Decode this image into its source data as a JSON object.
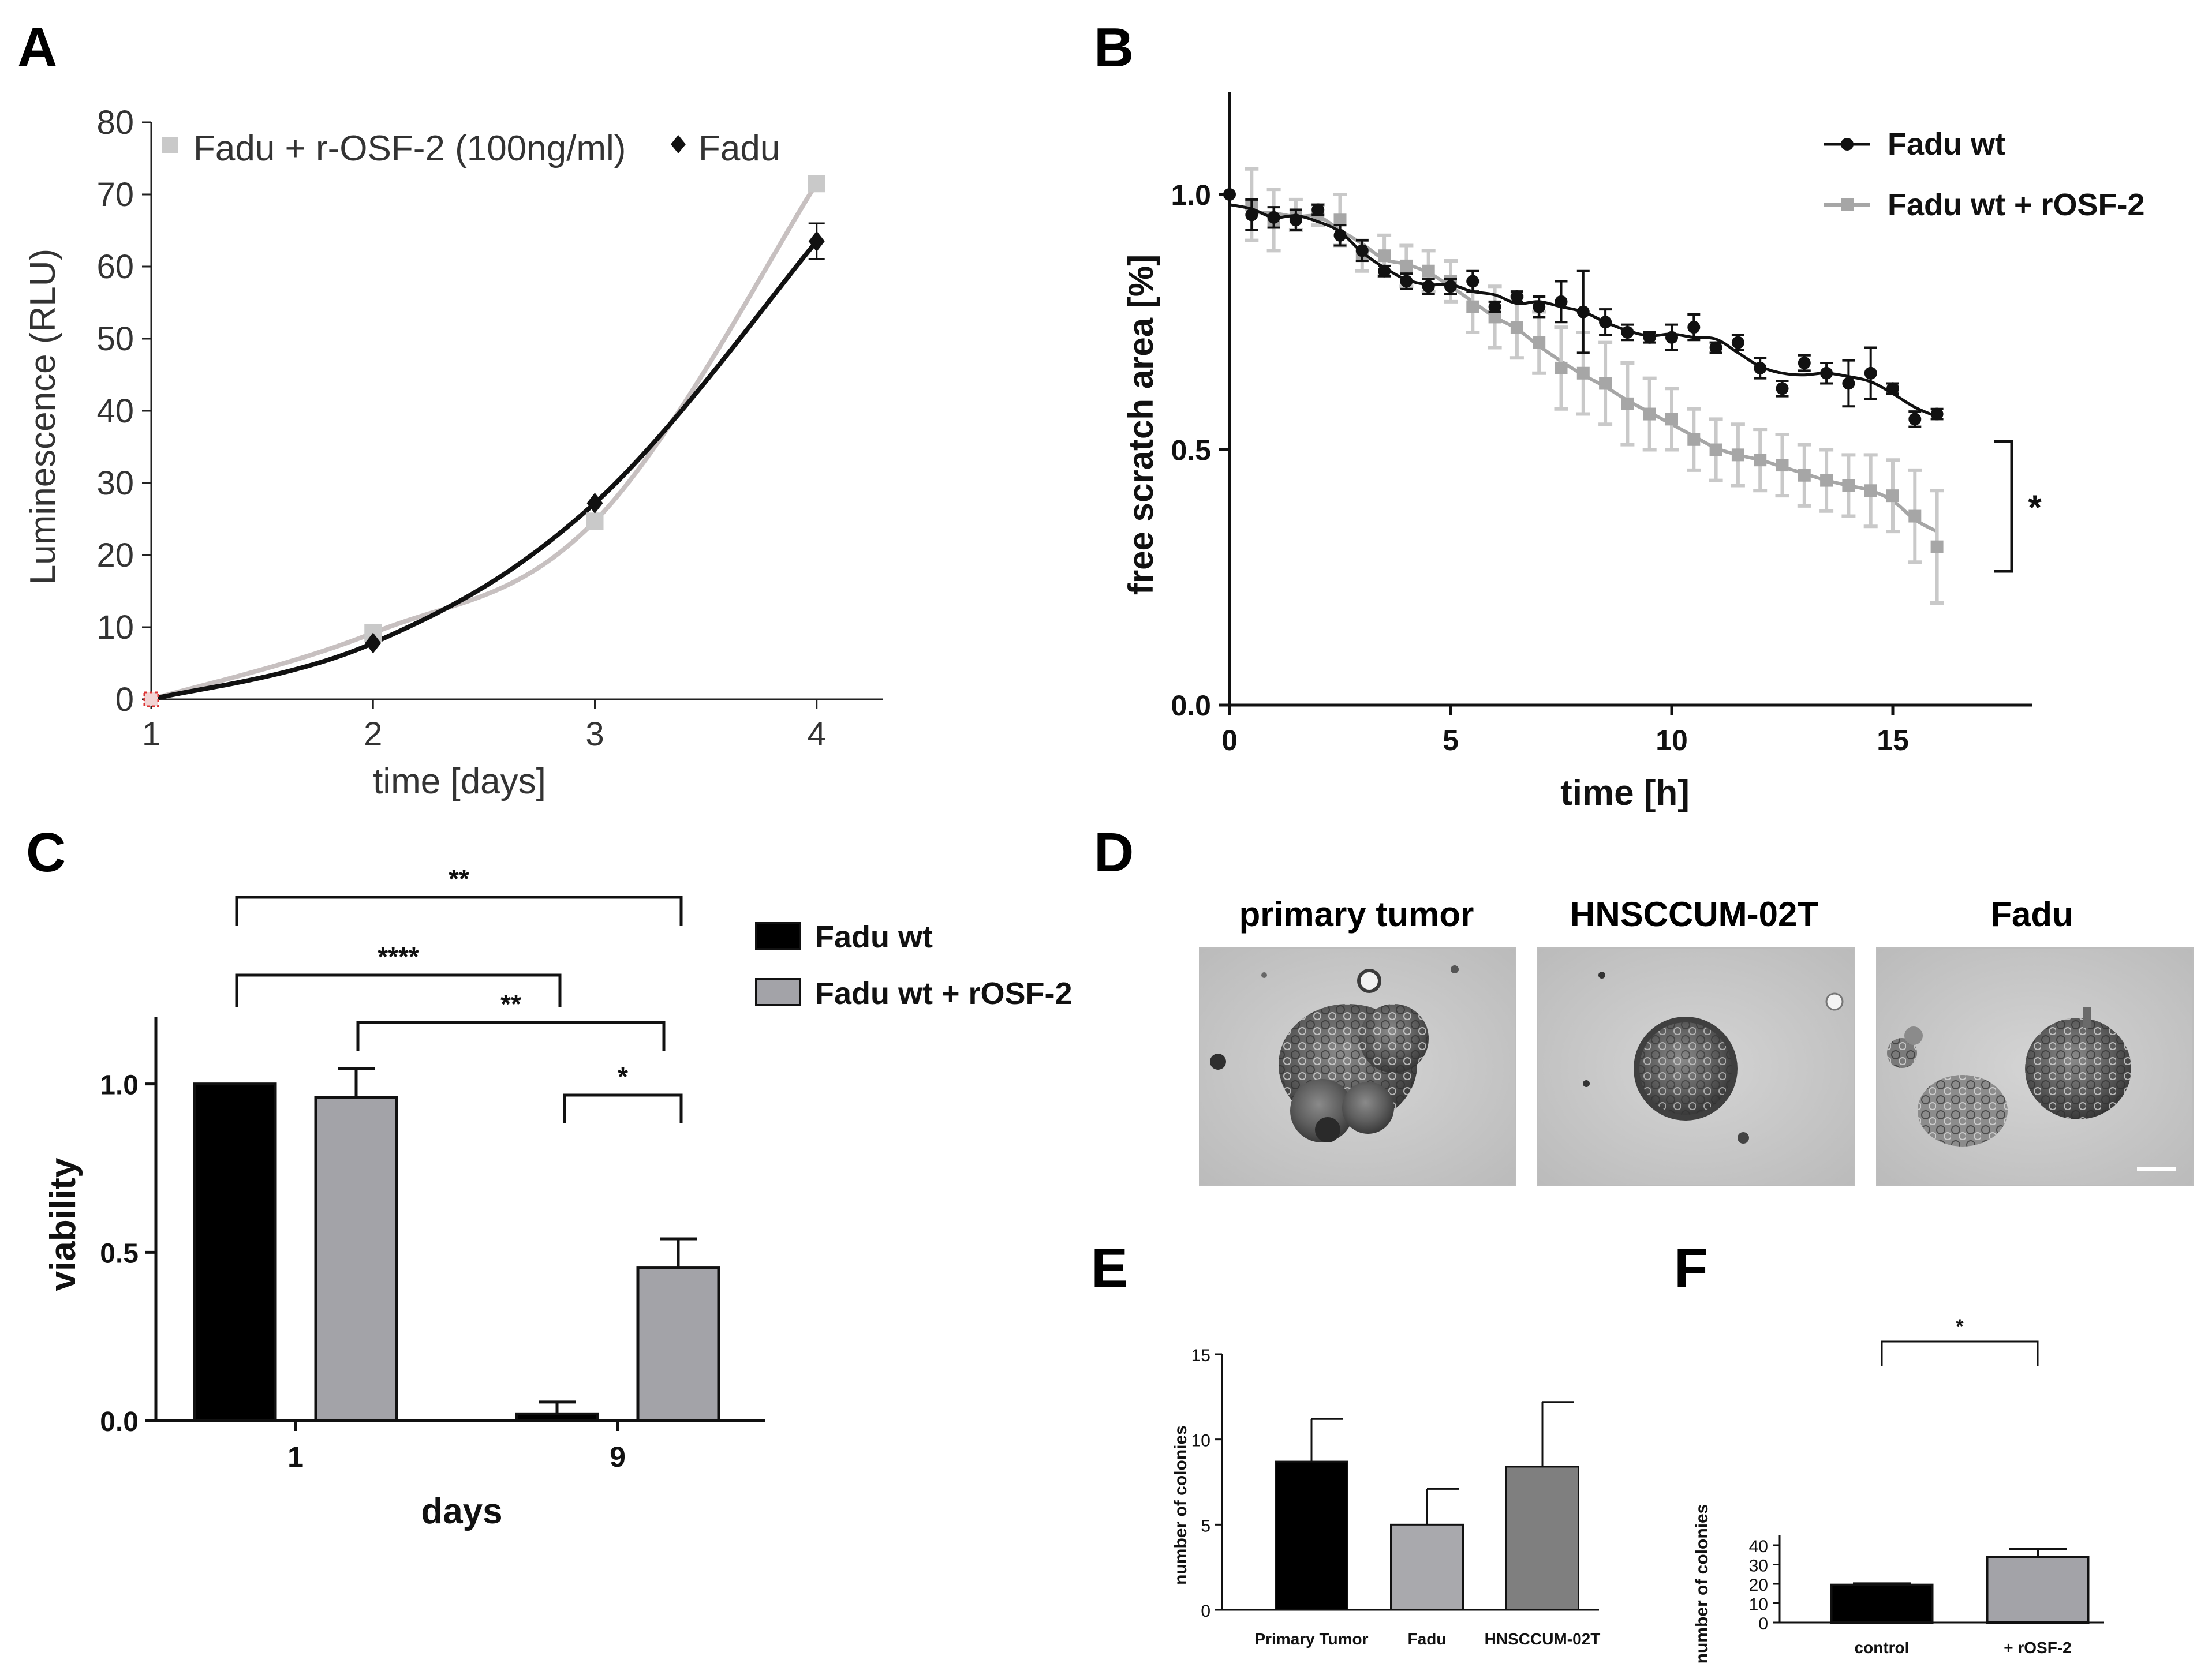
{
  "panels": {
    "A": "A",
    "B": "B",
    "C": "C",
    "D": "D",
    "E": "E",
    "F": "F"
  },
  "colors": {
    "black": "#111111",
    "lightgray": "#c9c9c9",
    "gray": "#a6a6a6",
    "bar_gray": "#a3a3a8",
    "bar_dark_gray": "#7f7f7f",
    "bar_light_gray": "#a9a9ad",
    "pinkgray": "#c7c0c0"
  },
  "micrographs": {
    "primary_tumor": "primary tumor",
    "hnsccum": "HNSCCUM-02T",
    "fadu": "Fadu"
  },
  "chart_data": [
    {
      "id": "A",
      "type": "line",
      "xlabel": "time [days]",
      "ylabel": "Luminescence (RLU)",
      "xlim": [
        1,
        4.3
      ],
      "ylim": [
        0,
        80
      ],
      "xticks": [
        1,
        2,
        3,
        4
      ],
      "yticks": [
        0,
        10,
        20,
        30,
        40,
        50,
        60,
        70,
        80
      ],
      "grid": false,
      "legend": "top-left",
      "series": [
        {
          "name": "Fadu + r-OSF-2 (100ng/ml)",
          "marker": "square",
          "x": [
            1,
            2,
            3,
            4
          ],
          "y": [
            0,
            9.2,
            24.7,
            71.5
          ],
          "err": [
            0,
            0,
            0,
            0
          ]
        },
        {
          "name": "Fadu",
          "marker": "diamond",
          "x": [
            1,
            2,
            3,
            4
          ],
          "y": [
            0,
            7.8,
            27.2,
            63.5
          ],
          "err": [
            0,
            0,
            0,
            2.5
          ]
        }
      ]
    },
    {
      "id": "B",
      "type": "line",
      "xlabel": "time [h]",
      "ylabel": "free scratch area [%]",
      "xlim": [
        0,
        18
      ],
      "ylim": [
        0,
        1.2
      ],
      "xticks": [
        0,
        5,
        10,
        15
      ],
      "yticks": [
        "0.0",
        "0.5",
        "1.0"
      ],
      "grid": false,
      "legend": "top-right",
      "significance": "*",
      "series": [
        {
          "name": "Fadu wt",
          "x": [
            0,
            0.5,
            1,
            1.5,
            2,
            2.5,
            3,
            3.5,
            4,
            4.5,
            5,
            5.5,
            6,
            6.5,
            7,
            7.5,
            8,
            8.5,
            9,
            9.5,
            10,
            10.5,
            11,
            11.5,
            12,
            12.5,
            13,
            13.5,
            14,
            14.5,
            15,
            15.5,
            16
          ],
          "y": [
            1.0,
            0.96,
            0.955,
            0.95,
            0.97,
            0.92,
            0.89,
            0.85,
            0.83,
            0.82,
            0.82,
            0.83,
            0.78,
            0.8,
            0.78,
            0.79,
            0.77,
            0.75,
            0.73,
            0.72,
            0.72,
            0.74,
            0.7,
            0.71,
            0.66,
            0.62,
            0.67,
            0.65,
            0.63,
            0.65,
            0.62,
            0.56,
            0.57
          ],
          "err": [
            0,
            0.03,
            0.02,
            0.02,
            0.01,
            0.02,
            0.02,
            0.01,
            0.015,
            0.015,
            0.015,
            0.02,
            0.01,
            0.01,
            0.02,
            0.04,
            0.08,
            0.025,
            0.015,
            0.01,
            0.025,
            0.025,
            0.01,
            0.015,
            0.02,
            0.015,
            0.015,
            0.02,
            0.045,
            0.05,
            0.01,
            0.015,
            0.01
          ]
        },
        {
          "name": "Fadu wt + rOSF-2",
          "x": [
            0.5,
            1,
            1.5,
            2,
            2.5,
            3,
            3.5,
            4,
            4.5,
            5,
            5.5,
            6,
            6.5,
            7,
            7.5,
            8,
            8.5,
            9,
            9.5,
            10,
            10.5,
            11,
            11.5,
            12,
            12.5,
            13,
            13.5,
            14,
            14.5,
            15,
            15.5,
            16
          ],
          "y": [
            0.98,
            0.95,
            0.96,
            0.96,
            0.95,
            0.88,
            0.88,
            0.86,
            0.85,
            0.83,
            0.78,
            0.76,
            0.74,
            0.71,
            0.66,
            0.65,
            0.63,
            0.59,
            0.57,
            0.56,
            0.52,
            0.5,
            0.49,
            0.48,
            0.47,
            0.45,
            0.44,
            0.43,
            0.42,
            0.41,
            0.37,
            0.31
          ],
          "err": [
            0.07,
            0.06,
            0.03,
            0.02,
            0.05,
            0.03,
            0.04,
            0.04,
            0.04,
            0.04,
            0.05,
            0.06,
            0.06,
            0.06,
            0.08,
            0.08,
            0.08,
            0.08,
            0.07,
            0.06,
            0.06,
            0.06,
            0.06,
            0.06,
            0.06,
            0.06,
            0.06,
            0.06,
            0.07,
            0.07,
            0.09,
            0.11
          ]
        }
      ]
    },
    {
      "id": "C",
      "type": "bar",
      "xlabel": "days",
      "ylabel": "viability",
      "categories": [
        "1",
        "9"
      ],
      "ylim": [
        0,
        1.2
      ],
      "yticks": [
        "0.0",
        "0.5",
        "1.0"
      ],
      "grid": false,
      "legend": "top-right",
      "series": [
        {
          "name": "Fadu wt",
          "values": [
            1.0,
            0.02
          ],
          "err": [
            0,
            0.035
          ]
        },
        {
          "name": "Fadu wt + rOSF-2",
          "values": [
            0.96,
            0.455
          ],
          "err": [
            0.085,
            0.085
          ]
        }
      ],
      "significance": [
        {
          "from": [
            0,
            0
          ],
          "to": [
            1,
            1
          ],
          "label": "**"
        },
        {
          "from": [
            0,
            0
          ],
          "to": [
            1,
            0
          ],
          "label": "****"
        },
        {
          "from": [
            0,
            1
          ],
          "to": [
            1,
            1
          ],
          "label": "**"
        },
        {
          "from": [
            1,
            0
          ],
          "to": [
            1,
            1
          ],
          "label": "*"
        }
      ]
    },
    {
      "id": "E",
      "type": "bar",
      "xlabel": "",
      "ylabel": "number of colonies",
      "categories": [
        "Primary Tumor",
        "Fadu",
        "HNSCCUM-02T"
      ],
      "values": [
        8.7,
        5.0,
        8.4
      ],
      "err": [
        2.5,
        2.1,
        3.8
      ],
      "ylim": [
        0,
        15
      ],
      "yticks": [
        0,
        5,
        10,
        15
      ],
      "grid": false
    },
    {
      "id": "F",
      "type": "bar",
      "xlabel": "",
      "ylabel": "number of colonies",
      "categories": [
        "control",
        "+ rOSF-2"
      ],
      "values": [
        19.5,
        34.0
      ],
      "err": [
        0.7,
        4.2
      ],
      "ylim": [
        0,
        40
      ],
      "yticks": [
        0,
        10,
        20,
        30,
        40
      ],
      "grid": false,
      "significance": [
        {
          "from": 0,
          "to": 1,
          "label": "*"
        }
      ]
    }
  ]
}
